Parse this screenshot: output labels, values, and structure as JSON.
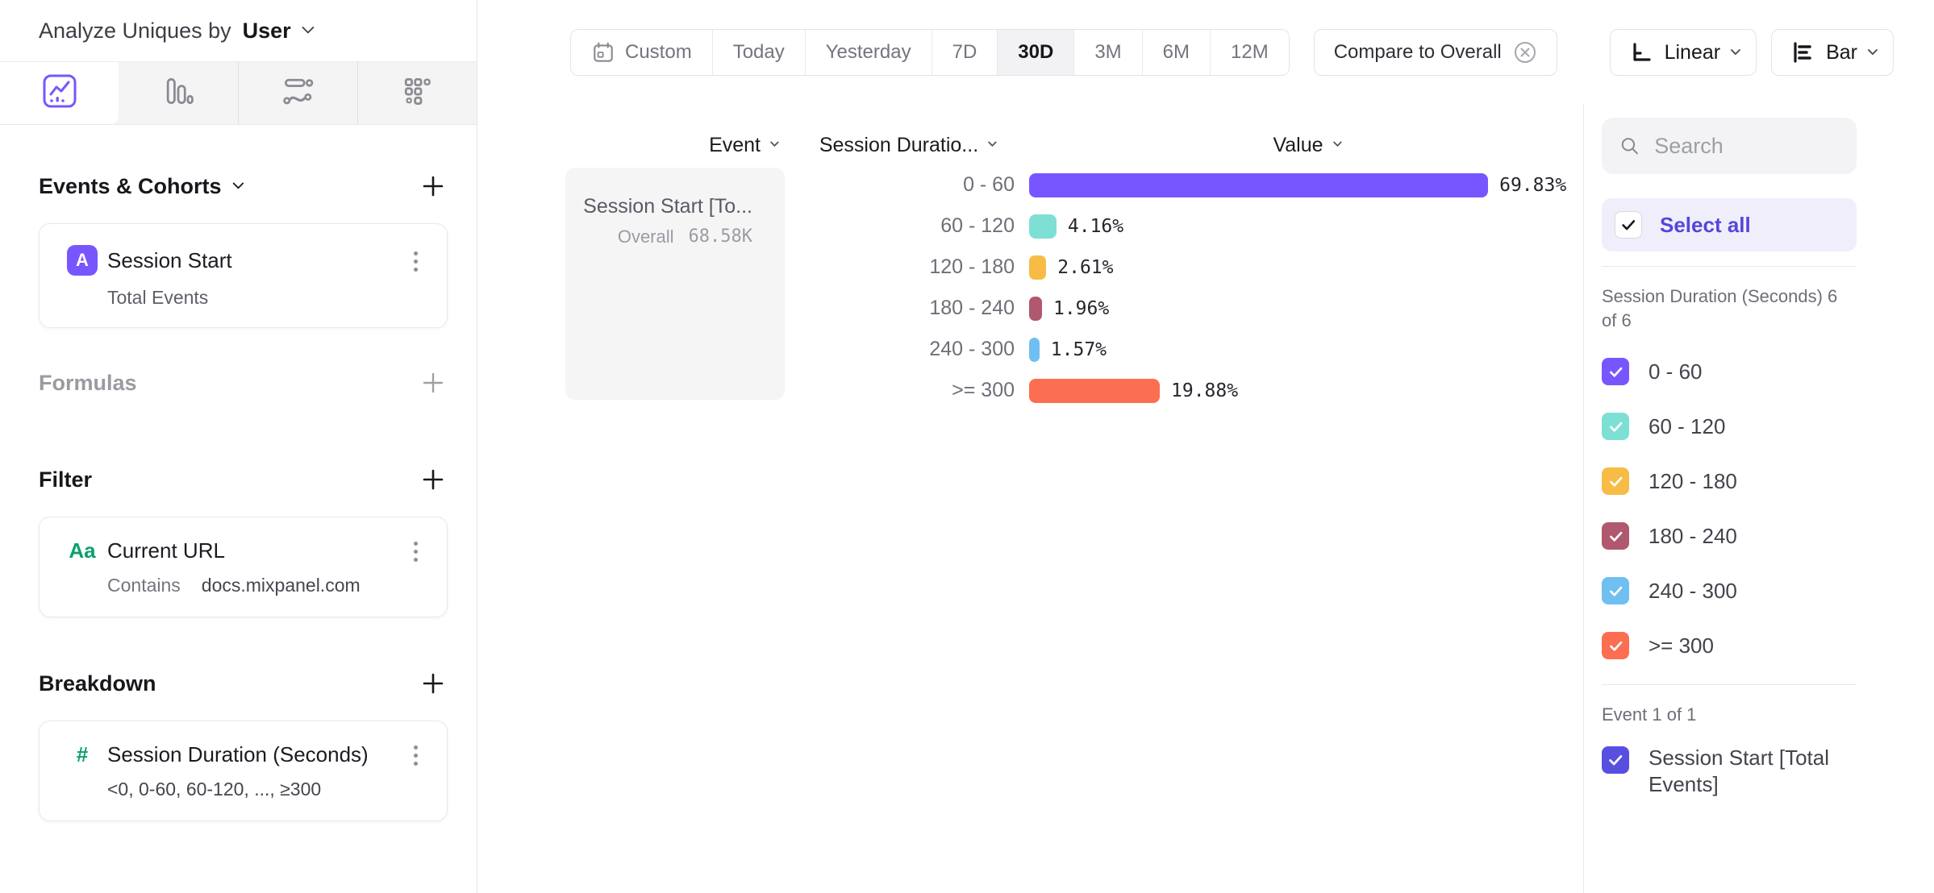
{
  "header": {
    "title": "Analyze Uniques by",
    "entity": "User"
  },
  "tabs": [
    {
      "name": "insights",
      "active": true
    },
    {
      "name": "bar-report",
      "active": false
    },
    {
      "name": "flows",
      "active": false
    },
    {
      "name": "retention",
      "active": false
    }
  ],
  "sidebar": {
    "events_section": {
      "title": "Events & Cohorts",
      "item": {
        "badge": "A",
        "title": "Session Start",
        "subtitle": "Total Events"
      }
    },
    "formulas_section": {
      "title": "Formulas"
    },
    "filter_section": {
      "title": "Filter",
      "item": {
        "icon": "Aa",
        "title": "Current URL",
        "operator": "Contains",
        "value": "docs.mixpanel.com"
      }
    },
    "breakdown_section": {
      "title": "Breakdown",
      "item": {
        "icon": "#",
        "title": "Session Duration (Seconds)",
        "subtitle": "<0, 0-60, 60-120, ..., ≥300"
      }
    }
  },
  "toolbar": {
    "date_ranges": [
      "Custom",
      "Today",
      "Yesterday",
      "7D",
      "30D",
      "3M",
      "6M",
      "12M"
    ],
    "active_range": "30D",
    "compare_label": "Compare to Overall",
    "scale_label": "Linear",
    "chart_type_label": "Bar"
  },
  "chart_data": {
    "type": "bar",
    "orientation": "horizontal",
    "title": "",
    "columns": {
      "event": "Event",
      "breakdown": "Session Duratio...",
      "value": "Value"
    },
    "event_cell": {
      "title": "Session Start [To...",
      "overall_label": "Overall",
      "overall_value": "68.58K"
    },
    "categories": [
      "0 - 60",
      "60 - 120",
      "120 - 180",
      "180 - 240",
      "240 - 300",
      ">= 300"
    ],
    "values": [
      69.83,
      4.16,
      2.61,
      1.96,
      1.57,
      19.88
    ],
    "value_labels": [
      "69.83%",
      "4.16%",
      "2.61%",
      "1.96%",
      "1.57%",
      "19.88%"
    ],
    "colors": [
      "#7856ff",
      "#7ee0d4",
      "#f6bc45",
      "#b0586e",
      "#6fbff0",
      "#fc6e51"
    ],
    "xlim": [
      0,
      100
    ],
    "grid": false,
    "legend_position": "right-panel"
  },
  "right_panel": {
    "search_placeholder": "Search",
    "select_all_label": "Select all",
    "group_label": "Session Duration (Seconds) 6 of 6",
    "segments": [
      {
        "label": "0 - 60",
        "color": "#7856ff",
        "checked": true
      },
      {
        "label": "60 - 120",
        "color": "#7ee0d4",
        "checked": true
      },
      {
        "label": "120 - 180",
        "color": "#f6bc45",
        "checked": true
      },
      {
        "label": "180 - 240",
        "color": "#b0586e",
        "checked": true
      },
      {
        "label": "240 - 300",
        "color": "#6fbff0",
        "checked": true
      },
      {
        "label": ">= 300",
        "color": "#fc6e51",
        "checked": true
      }
    ],
    "event_group_label": "Event 1 of 1",
    "event_item": {
      "label": "Session Start [Total Events]",
      "color": "#584fe0",
      "checked": true
    }
  }
}
